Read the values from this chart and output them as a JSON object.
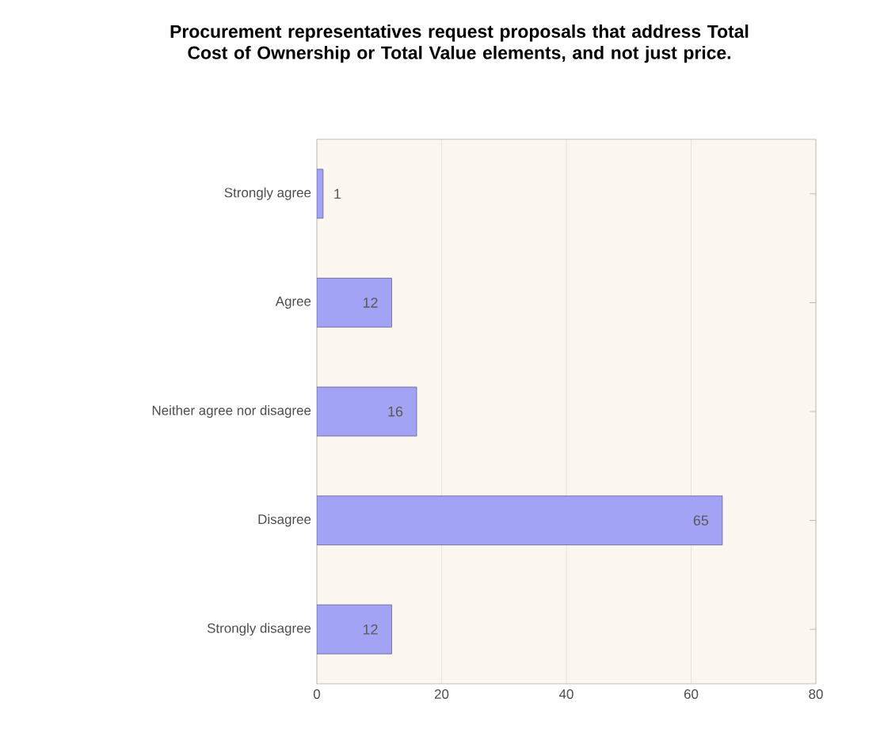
{
  "chart_data": {
    "type": "bar",
    "orientation": "horizontal",
    "title": "Procurement representatives request proposals that address Total Cost of Ownership or Total Value elements, and not just price.",
    "categories": [
      "Strongly agree",
      "Agree",
      "Neither agree nor disagree",
      "Disagree",
      "Strongly disagree"
    ],
    "values": [
      1,
      12,
      16,
      65,
      12
    ],
    "color": "#a3a3f5",
    "xlim": [
      0,
      80
    ],
    "xticks": [
      0,
      20,
      40,
      60,
      80
    ],
    "grid": "x",
    "data_labels": true
  }
}
